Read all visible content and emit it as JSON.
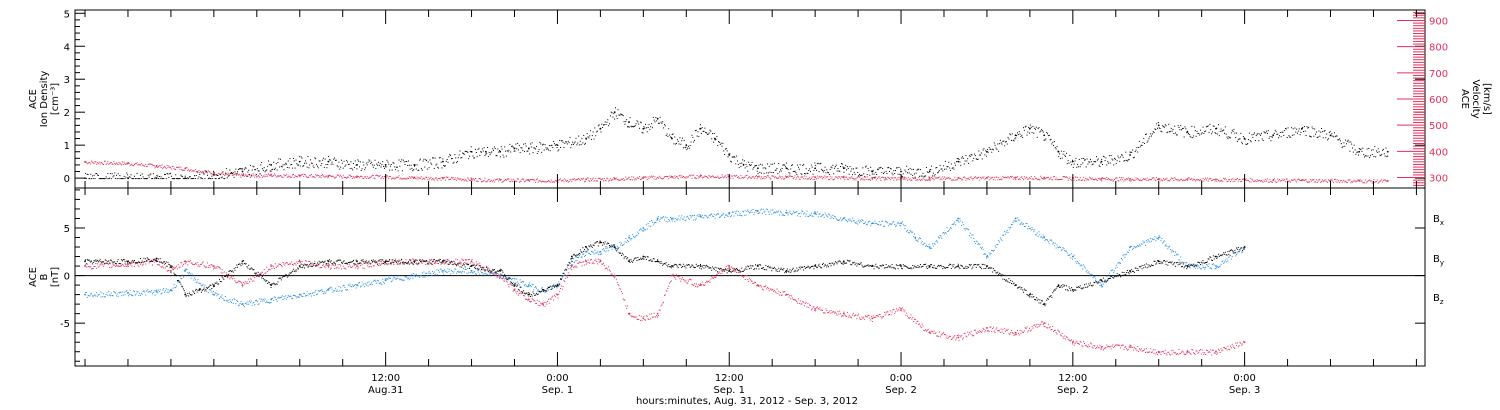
{
  "colors": {
    "black": "#000000",
    "pink": "#e0305a",
    "blue": "#2a8ee0",
    "axis": "#000000"
  },
  "chart_data": [
    {
      "type": "scatter",
      "panel": "top",
      "ylabel": [
        "ACE",
        "Ion Density",
        "[cm⁻³]"
      ],
      "ylabel_right": [
        "ACE",
        "Velocity",
        "[km/s]"
      ],
      "ylim": [
        -0.3,
        5.1
      ],
      "yticks": [
        0,
        1,
        2,
        3,
        4,
        5
      ],
      "ylim_right": [
        260,
        940
      ],
      "yticks_right": [
        300,
        400,
        500,
        600,
        700,
        800,
        900
      ],
      "x_unit": "hours since Aug 31 00:00 UT",
      "xlim": [
        -9.7,
        84.6
      ],
      "series": [
        {
          "key": "density",
          "color_key": "black",
          "axis": "left",
          "x": [
            -9,
            -6,
            -4,
            -2,
            0,
            2,
            4,
            6,
            8,
            10,
            12,
            14,
            16,
            18,
            19,
            20,
            21,
            22,
            24,
            26,
            27,
            28,
            29,
            30,
            31,
            32,
            33,
            34,
            35,
            36,
            37,
            38,
            40,
            42,
            44,
            46,
            48,
            50,
            52,
            54,
            56,
            57,
            58,
            59,
            60,
            62,
            64,
            66,
            68,
            70,
            72,
            74,
            76,
            78,
            80,
            82
          ],
          "y": [
            0,
            0,
            0,
            0,
            0.1,
            0.2,
            0.4,
            0.5,
            0.5,
            0.4,
            0.4,
            0.4,
            0.5,
            0.8,
            0.8,
            0.8,
            0.9,
            0.9,
            1.0,
            1.2,
            1.5,
            2.0,
            1.7,
            1.5,
            1.8,
            1.2,
            1.0,
            1.5,
            1.2,
            0.7,
            0.4,
            0.3,
            0.3,
            0.3,
            0.3,
            0.2,
            0.2,
            0.2,
            0.5,
            0.8,
            1.3,
            1.5,
            1.3,
            0.8,
            0.5,
            0.5,
            0.7,
            1.6,
            1.4,
            1.5,
            1.2,
            1.3,
            1.5,
            1.3,
            0.8,
            0.8
          ]
        },
        {
          "key": "velocity",
          "color_key": "pink",
          "axis": "right",
          "x": [
            -9,
            -6,
            -4,
            -2,
            0,
            2,
            4,
            6,
            8,
            10,
            12,
            14,
            16,
            18,
            20,
            22,
            24,
            26,
            28,
            30,
            32,
            34,
            36,
            38,
            40,
            42,
            44,
            46,
            48,
            50,
            52,
            54,
            56,
            58,
            60,
            62,
            64,
            66,
            68,
            70,
            72,
            74,
            76,
            78,
            80,
            82
          ],
          "y": [
            360,
            355,
            345,
            335,
            318,
            308,
            310,
            308,
            306,
            305,
            304,
            300,
            298,
            294,
            291,
            290,
            290,
            293,
            296,
            300,
            303,
            306,
            305,
            303,
            302,
            301,
            300,
            298,
            297,
            297,
            298,
            299,
            300,
            300,
            298,
            296,
            295,
            295,
            294,
            293,
            292,
            290,
            290,
            289,
            288,
            287
          ]
        }
      ]
    },
    {
      "type": "scatter",
      "panel": "bottom",
      "ylabel": [
        "ACE",
        "B",
        "[nT]"
      ],
      "ylim": [
        -9.5,
        9.2
      ],
      "yticks": [
        -5,
        0,
        5
      ],
      "x_unit": "hours since Aug 31 00:00 UT",
      "xlim": [
        -9.7,
        84.6
      ],
      "xticks": [
        {
          "x": 12,
          "line1": "12:00",
          "line2": "Aug.31"
        },
        {
          "x": 24,
          "line1": "0:00",
          "line2": "Sep. 1"
        },
        {
          "x": 36,
          "line1": "12:00",
          "line2": "Sep. 1"
        },
        {
          "x": 48,
          "line1": "0:00",
          "line2": "Sep. 2"
        },
        {
          "x": 60,
          "line1": "12:00",
          "line2": "Sep. 2"
        },
        {
          "x": 72,
          "line1": "0:00",
          "line2": "Sep. 3"
        }
      ],
      "xlabel": "hours:minutes, Aug. 31, 2012 - Sep.  3, 2012",
      "legend": [
        {
          "label": "B",
          "sub": "x",
          "color_key": "black"
        },
        {
          "label": "B",
          "sub": "y",
          "color_key": "blue"
        },
        {
          "label": "B",
          "sub": "z",
          "color_key": "pink"
        }
      ],
      "series": [
        {
          "key": "Bx",
          "color_key": "black",
          "x": [
            -9,
            -6,
            -4,
            -3,
            -2,
            -1,
            0,
            2,
            4,
            6,
            8,
            10,
            12,
            14,
            16,
            18,
            20,
            21,
            22,
            23,
            24,
            25,
            26,
            27,
            28,
            29,
            30,
            31,
            32,
            34,
            36,
            38,
            40,
            42,
            44,
            46,
            48,
            50,
            52,
            54,
            56,
            57,
            58,
            59,
            60,
            62,
            64,
            66,
            68,
            70,
            72
          ],
          "y": [
            1.5,
            1.5,
            1.8,
            1.0,
            -2.0,
            -1.5,
            -1.0,
            1.5,
            -1.0,
            1.0,
            1.5,
            1.5,
            1.5,
            1.5,
            1.5,
            1.0,
            0.5,
            -1.0,
            -2.0,
            -1.5,
            -1.0,
            2.0,
            3.0,
            3.5,
            3.0,
            1.5,
            2.0,
            1.5,
            1.0,
            1.0,
            0.5,
            1.0,
            0.5,
            1.0,
            1.5,
            1.0,
            1.0,
            1.0,
            1.0,
            1.0,
            -1.0,
            -2.0,
            -3.0,
            -1.0,
            -1.5,
            -0.5,
            0.5,
            1.5,
            1.0,
            2.0,
            3.0
          ]
        },
        {
          "key": "By",
          "color_key": "blue",
          "x": [
            -9,
            -6,
            -4,
            -3,
            -2,
            0,
            2,
            4,
            6,
            8,
            10,
            12,
            14,
            16,
            18,
            20,
            22,
            23,
            24,
            25,
            26,
            27,
            28,
            29,
            30,
            31,
            32,
            34,
            36,
            38,
            40,
            42,
            44,
            46,
            48,
            49,
            50,
            52,
            54,
            56,
            58,
            60,
            62,
            64,
            66,
            68,
            70,
            72
          ],
          "y": [
            -2.0,
            -1.8,
            -1.7,
            -1.5,
            0.5,
            -2.0,
            -3.0,
            -2.5,
            -2.0,
            -1.5,
            -1.0,
            -0.5,
            0,
            0.5,
            0.5,
            0,
            -1.0,
            -1.5,
            -1.0,
            1.5,
            2.5,
            2.5,
            3.0,
            4.0,
            5.0,
            6.0,
            6.0,
            6.2,
            6.5,
            6.8,
            6.6,
            6.5,
            6.0,
            5.5,
            5.5,
            4.0,
            3.0,
            6.0,
            2.0,
            6.0,
            4.0,
            2.0,
            -1.0,
            3.0,
            4.0,
            1.0,
            1.0,
            3.0
          ]
        },
        {
          "key": "Bz",
          "color_key": "pink",
          "x": [
            -9,
            -6,
            -4,
            -3,
            -2,
            0,
            2,
            4,
            6,
            8,
            10,
            12,
            14,
            16,
            18,
            20,
            21,
            22,
            23,
            24,
            25,
            26,
            27,
            28,
            29,
            30,
            31,
            32,
            34,
            36,
            38,
            40,
            42,
            44,
            46,
            48,
            50,
            52,
            54,
            56,
            58,
            60,
            62,
            64,
            66,
            68,
            70,
            72
          ],
          "y": [
            1.0,
            1.2,
            1.5,
            0.5,
            1.5,
            1.0,
            -1.0,
            1.0,
            1.5,
            1.0,
            1.0,
            1.5,
            1.5,
            1.5,
            1.5,
            0,
            -1.5,
            -2.5,
            -3.0,
            -2.0,
            1.0,
            1.5,
            1.5,
            0,
            -4.0,
            -4.5,
            -4.0,
            0,
            -1.0,
            1.0,
            -1.0,
            -2.0,
            -3.5,
            -4.0,
            -4.5,
            -3.5,
            -6.0,
            -6.5,
            -5.5,
            -6.0,
            -5.0,
            -7.0,
            -7.5,
            -7.5,
            -8.0,
            -8.0,
            -8.0,
            -7.0
          ]
        }
      ]
    }
  ]
}
